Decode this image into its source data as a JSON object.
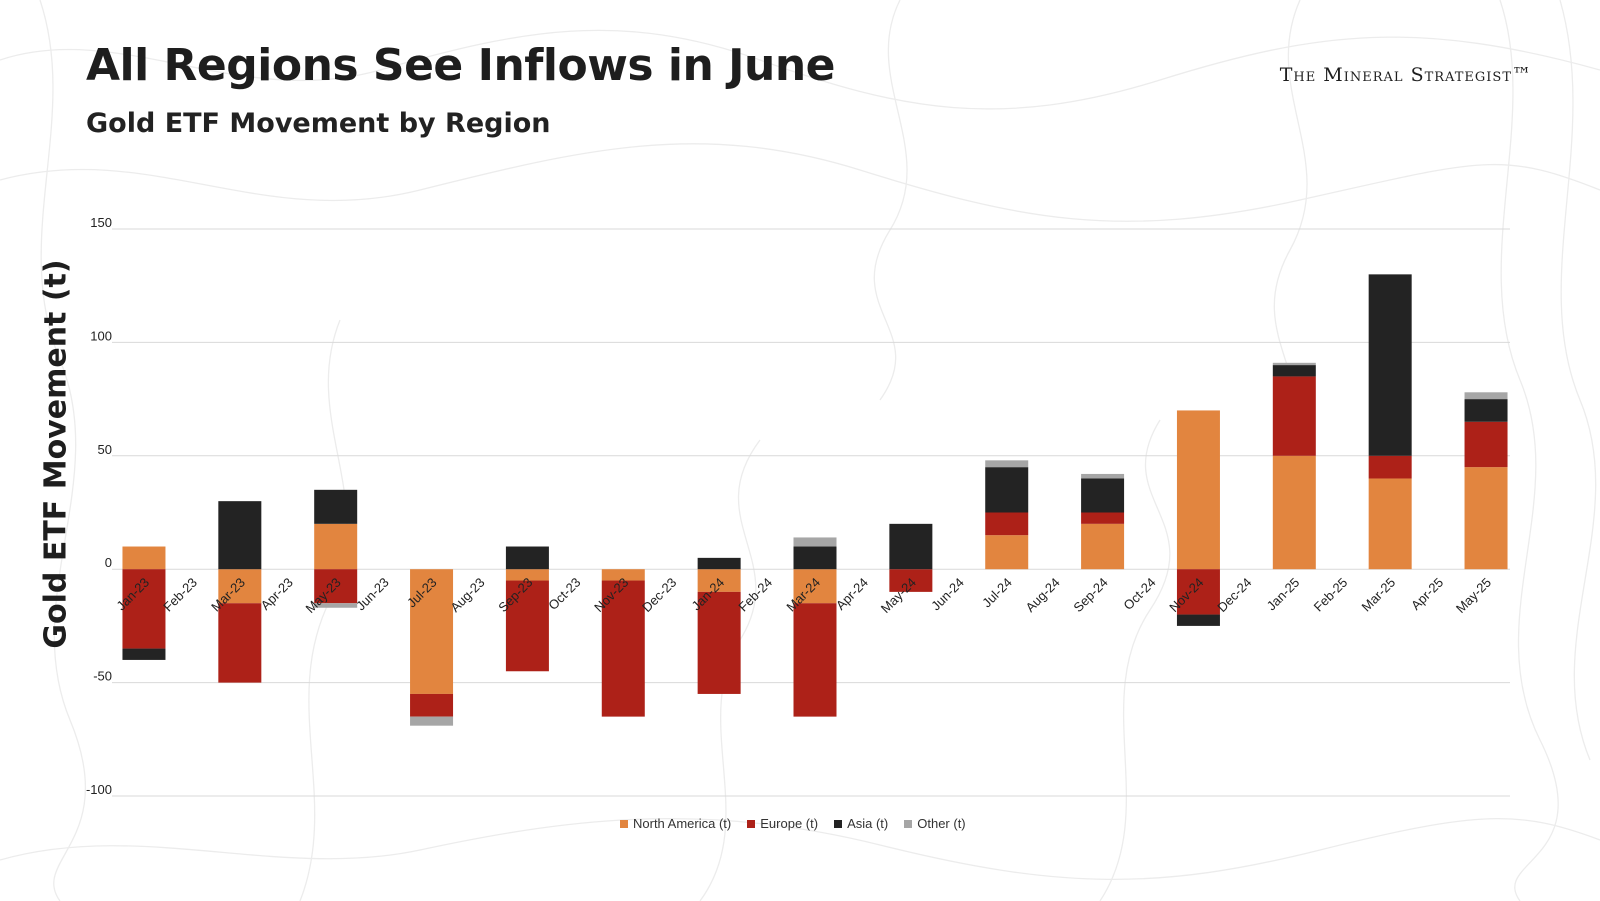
{
  "header": {
    "title": "All Regions See Inflows in June",
    "subtitle": "Gold ETF Movement by Region",
    "brand": "The Mineral Strategist™"
  },
  "colors": {
    "north_america": "#e2853f",
    "europe": "#ad2118",
    "asia": "#232323",
    "other": "#a6a6a6"
  },
  "chart_data": {
    "type": "bar",
    "stacked": true,
    "title": "Gold ETF Movement by Region",
    "xlabel": "",
    "ylabel": "Gold ETF Movement (t)",
    "ylim": [
      -100,
      150
    ],
    "yticks": [
      150,
      100,
      50,
      0,
      -50,
      -100
    ],
    "grid": true,
    "legend_position": "bottom",
    "categories": [
      "Jan-23",
      "Feb-23",
      "Mar-23",
      "Apr-23",
      "May-23",
      "Jun-23",
      "Jul-23",
      "Aug-23",
      "Sep-23",
      "Oct-23",
      "Nov-23",
      "Dec-23",
      "Jan-24",
      "Feb-24",
      "Mar-24",
      "Apr-24",
      "May-24",
      "Jun-24",
      "Jul-24",
      "Aug-24",
      "Sep-24",
      "Oct-24",
      "Nov-24",
      "Dec-24",
      "Jan-25",
      "Feb-25",
      "Mar-25",
      "Apr-25",
      "May-25"
    ],
    "series": [
      {
        "name": "North America (t)",
        "values": [
          10,
          null,
          -15,
          null,
          20,
          null,
          -55,
          null,
          -5,
          null,
          -5,
          null,
          -10,
          null,
          -15,
          null,
          0,
          null,
          15,
          null,
          20,
          null,
          70,
          null,
          50,
          null,
          40,
          null,
          45
        ]
      },
      {
        "name": "Europe (t)",
        "values": [
          -35,
          null,
          -35,
          null,
          -15,
          null,
          -10,
          null,
          -40,
          null,
          -60,
          null,
          -45,
          null,
          -50,
          null,
          -10,
          null,
          10,
          null,
          5,
          null,
          -20,
          null,
          35,
          null,
          10,
          null,
          20
        ]
      },
      {
        "name": "Asia (t)",
        "values": [
          -5,
          null,
          30,
          null,
          15,
          null,
          0,
          null,
          10,
          null,
          0,
          null,
          5,
          null,
          10,
          null,
          20,
          null,
          20,
          null,
          15,
          null,
          -5,
          null,
          5,
          null,
          80,
          null,
          10
        ]
      },
      {
        "name": "Other (t)",
        "values": [
          0,
          null,
          0,
          null,
          -2,
          null,
          -4,
          null,
          0,
          null,
          0,
          null,
          0,
          null,
          4,
          null,
          0,
          null,
          3,
          null,
          2,
          null,
          0,
          null,
          1,
          null,
          0,
          null,
          3
        ]
      }
    ]
  }
}
